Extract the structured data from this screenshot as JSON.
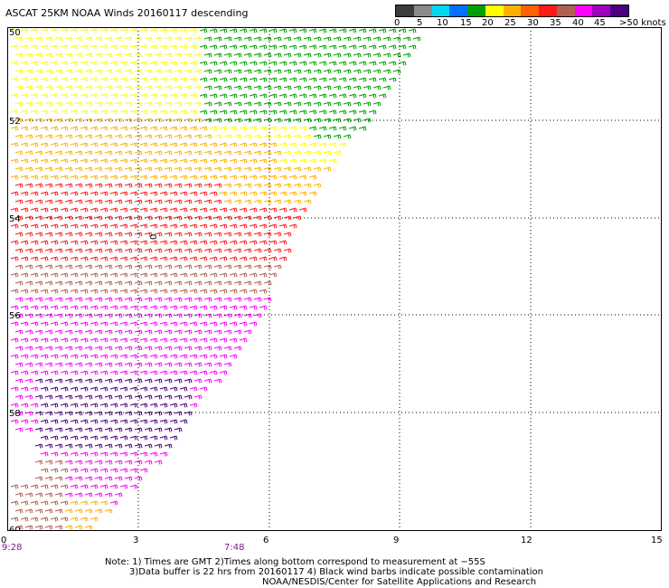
{
  "title": "ASCAT 25KM NOAA Winds 20160117 descending",
  "colorbar": {
    "labels": [
      "0",
      "5",
      "10",
      "15",
      "20",
      "25",
      "30",
      "35",
      "40",
      "45",
      ">50 knots"
    ],
    "colors": [
      "#3c3c3c",
      "#8a8a8a",
      "#00d8f0",
      "#0070ff",
      "#00a000",
      "#ffff00",
      "#ffb000",
      "#ff6000",
      "#ff1a1a",
      "#b06050",
      "#ff00ff",
      "#a000c0",
      "#4b0082"
    ]
  },
  "axes": {
    "x_ticks": [
      "0",
      "3",
      "6",
      "9",
      "12",
      "15"
    ],
    "y_ticks": [
      "50",
      "52",
      "54",
      "56",
      "58",
      "60"
    ],
    "y_extra_label": "0",
    "time_labels": [
      "9:28",
      "7:48"
    ]
  },
  "notes": {
    "line1": "Note: 1) Times are GMT 2)Times along bottom correspond to measurement at −55S",
    "line2": "3)Data buffer is 22 hrs from 20160117 4) Black wind barbs indicate possible contamination"
  },
  "credit": "NOAA/NESDIS/Center for Satellite Applications and Research"
}
